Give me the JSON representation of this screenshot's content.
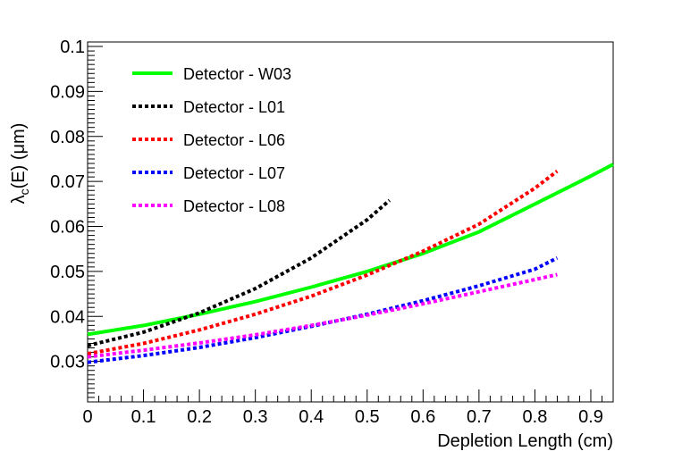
{
  "chart_data": {
    "type": "line",
    "title": "",
    "xlabel": "Depletion Length (cm)",
    "ylabel_main": "λ",
    "ylabel_sub": "c",
    "ylabel_rest": "(E) (μm)",
    "xlim": [
      0,
      0.94
    ],
    "ylim": [
      0.021,
      0.101
    ],
    "x_ticks": [
      0,
      0.1,
      0.2,
      0.3,
      0.4,
      0.5,
      0.6,
      0.7,
      0.8,
      0.9
    ],
    "x_tick_labels": [
      "0",
      "0.1",
      "0.2",
      "0.3",
      "0.4",
      "0.5",
      "0.6",
      "0.7",
      "0.8",
      "0.9"
    ],
    "y_ticks": [
      0.03,
      0.04,
      0.05,
      0.06,
      0.07,
      0.08,
      0.09,
      0.1
    ],
    "y_tick_labels": [
      "0.03",
      "0.04",
      "0.05",
      "0.06",
      "0.07",
      "0.08",
      "0.09",
      "0.1"
    ],
    "legend_position": "top-left",
    "series": [
      {
        "name": "Detector - W03",
        "color": "#00ff00",
        "style": "solid",
        "x": [
          0,
          0.1,
          0.2,
          0.3,
          0.4,
          0.5,
          0.6,
          0.7,
          0.8,
          0.9,
          0.94
        ],
        "values": [
          0.036,
          0.038,
          0.0405,
          0.0433,
          0.0465,
          0.05,
          0.054,
          0.0588,
          0.065,
          0.0712,
          0.0738
        ]
      },
      {
        "name": "Detector - L01",
        "color": "#000000",
        "style": "dotted",
        "x": [
          0,
          0.1,
          0.2,
          0.3,
          0.4,
          0.5,
          0.54
        ],
        "values": [
          0.0335,
          0.0365,
          0.0408,
          0.0462,
          0.053,
          0.0615,
          0.0658
        ]
      },
      {
        "name": "Detector - L06",
        "color": "#ff0000",
        "style": "dotted",
        "x": [
          0,
          0.1,
          0.2,
          0.3,
          0.4,
          0.5,
          0.6,
          0.7,
          0.8,
          0.84
        ],
        "values": [
          0.0317,
          0.034,
          0.037,
          0.0405,
          0.0445,
          0.0492,
          0.0545,
          0.0605,
          0.0685,
          0.0723
        ]
      },
      {
        "name": "Detector - L07",
        "color": "#0000ff",
        "style": "dotted",
        "x": [
          0,
          0.1,
          0.2,
          0.3,
          0.4,
          0.5,
          0.6,
          0.7,
          0.8,
          0.84
        ],
        "values": [
          0.0298,
          0.0313,
          0.0331,
          0.0353,
          0.0378,
          0.0405,
          0.0435,
          0.0468,
          0.0505,
          0.053
        ]
      },
      {
        "name": "Detector - L08",
        "color": "#ff00ff",
        "style": "dotted",
        "x": [
          0,
          0.1,
          0.2,
          0.3,
          0.4,
          0.5,
          0.6,
          0.7,
          0.8,
          0.84
        ],
        "values": [
          0.031,
          0.0325,
          0.0341,
          0.0359,
          0.038,
          0.0403,
          0.0428,
          0.0455,
          0.0482,
          0.0493
        ]
      }
    ]
  }
}
